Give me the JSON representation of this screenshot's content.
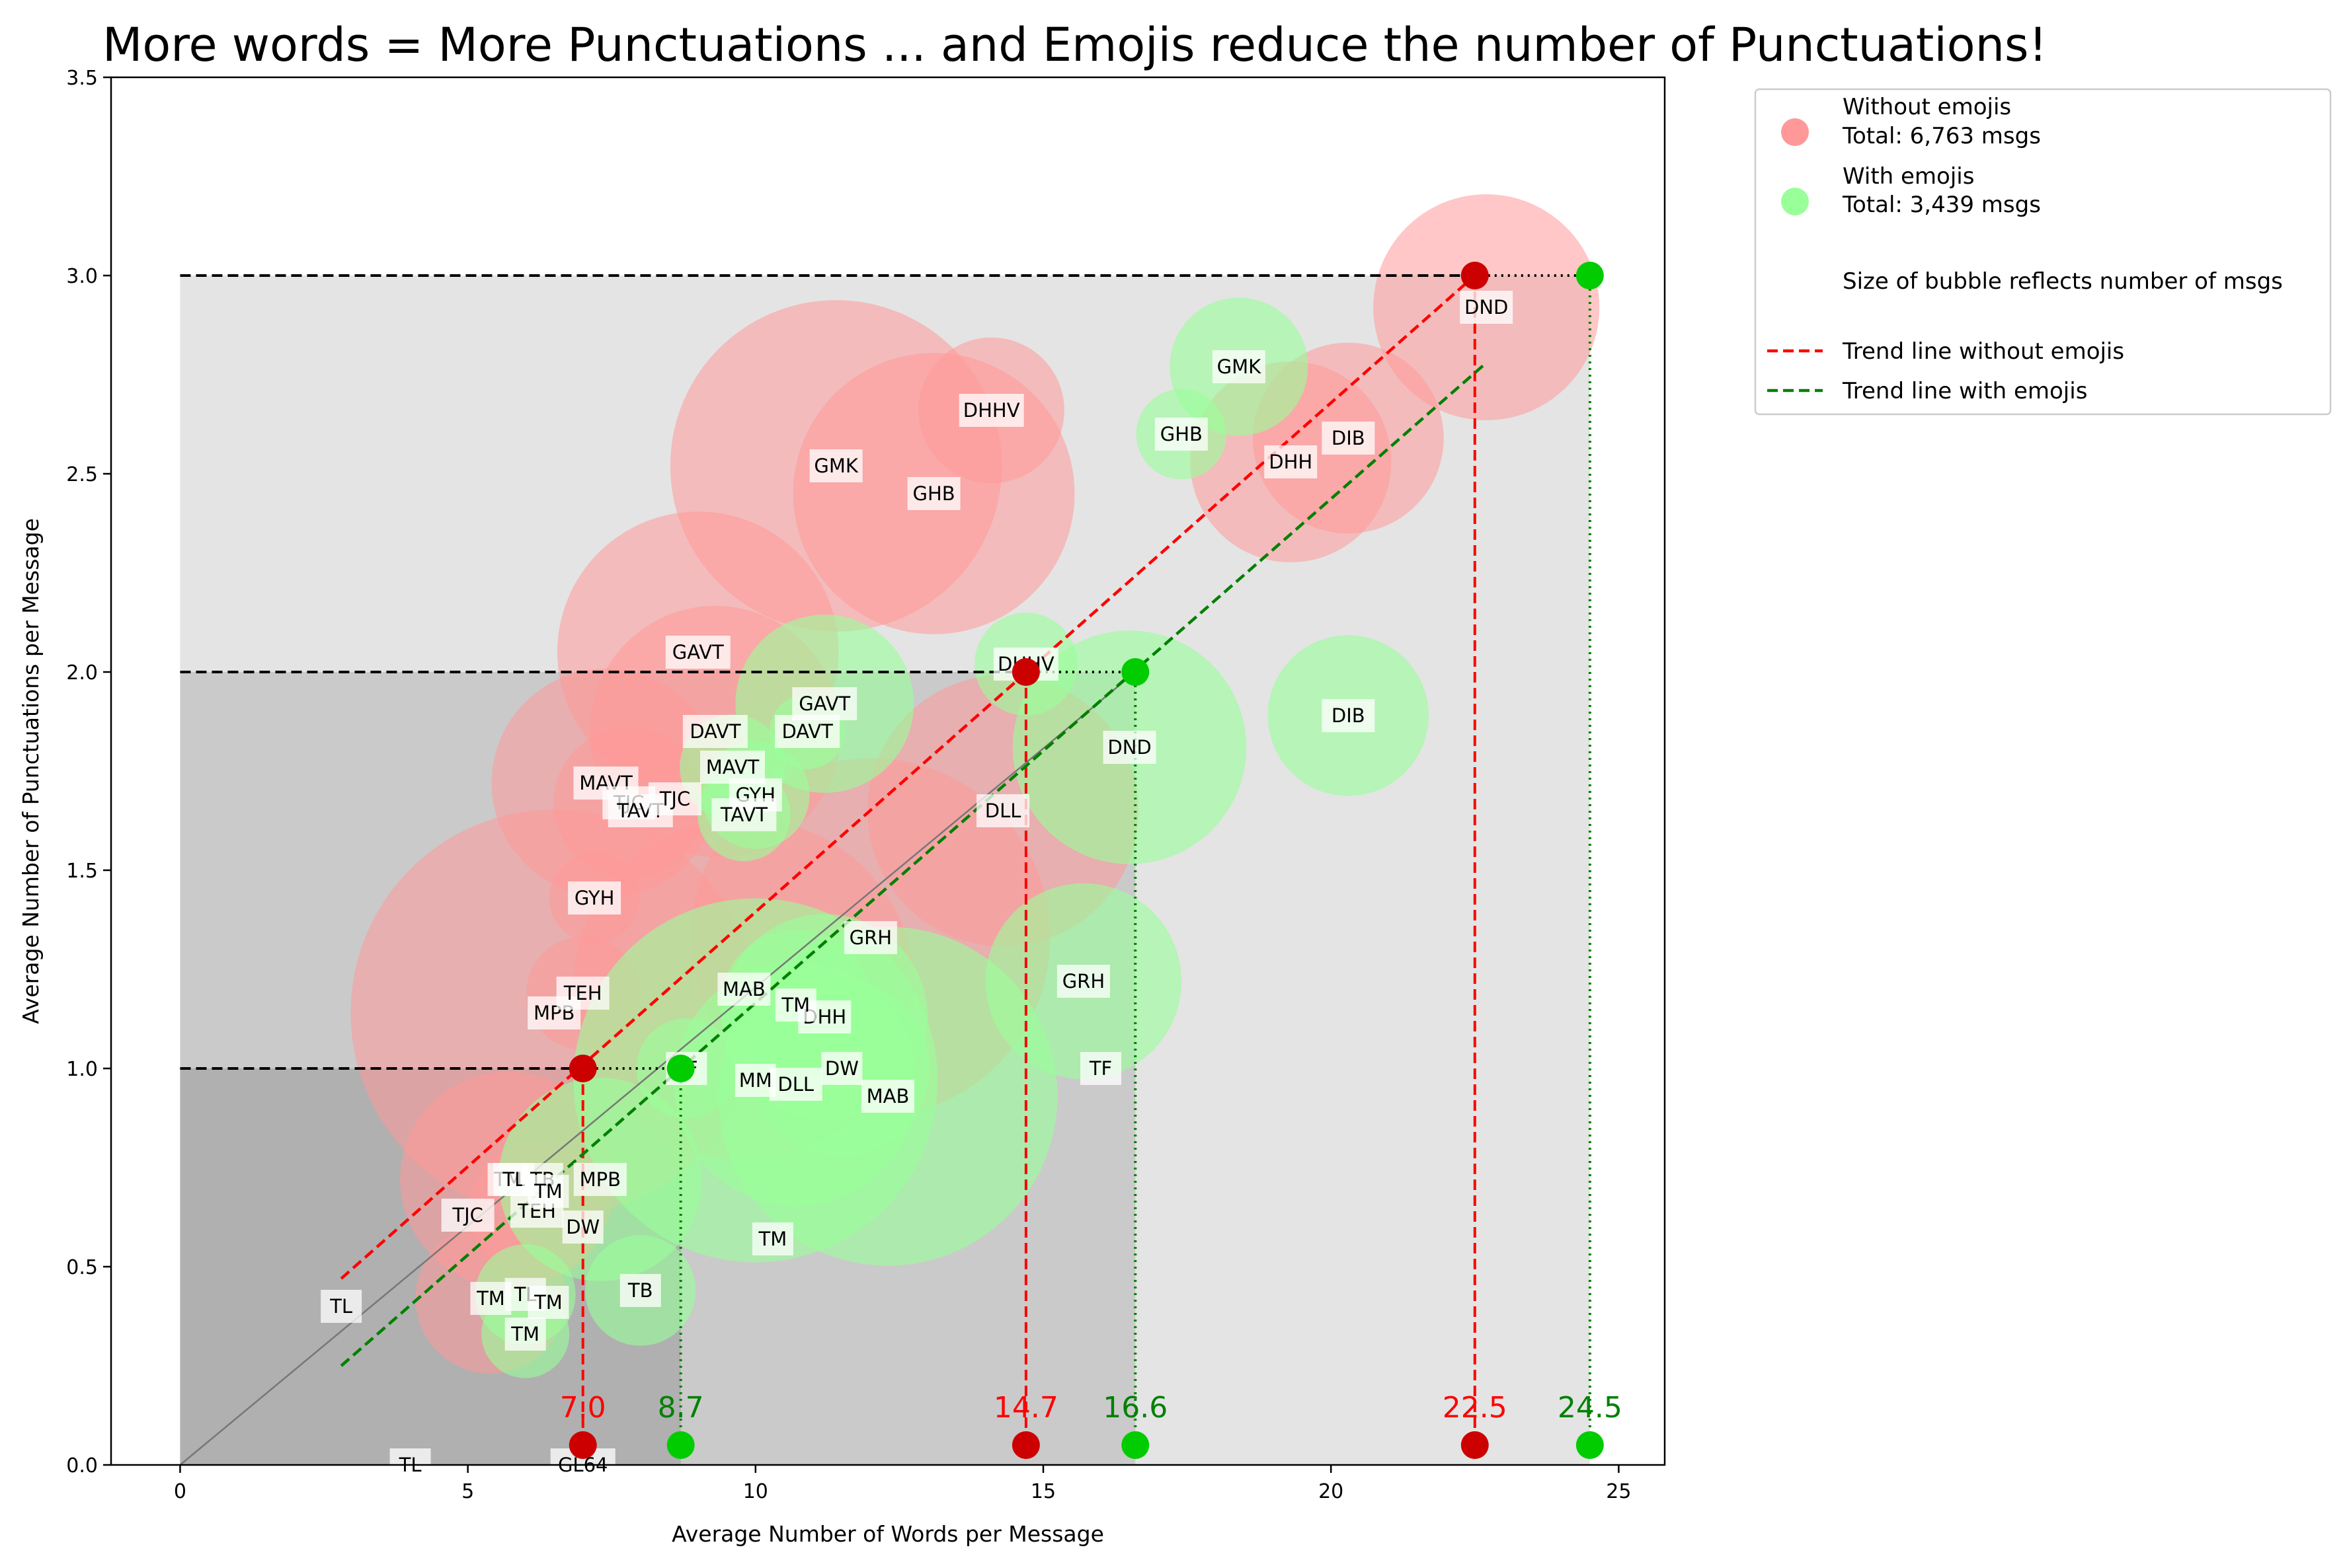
{
  "chart_data": {
    "type": "scatter",
    "title": "More words = More Punctuations ... and Emojis reduce the number of Punctuations!",
    "xlabel": "Average Number of Words per Message",
    "ylabel": "Average Number of Punctuations per Message",
    "xlim": [
      -1.2,
      25.8
    ],
    "ylim": [
      0,
      3.5
    ],
    "xticks": [
      0,
      5,
      10,
      15,
      20,
      25
    ],
    "yticks": [
      0.0,
      0.5,
      1.0,
      1.5,
      2.0,
      2.5,
      3.0,
      3.5
    ],
    "grid": false,
    "legend_placement": "outside-right-top",
    "colors": {
      "without": "#ff9999",
      "with": "#99ff99",
      "trend_without": "#ff0000",
      "trend_with": "#008000",
      "marker_without": "#cc0000",
      "marker_with": "#00cc00",
      "shade_dark": "#b0b0b0",
      "shade_mid": "#cacaca",
      "shade_light": "#e4e4e4"
    },
    "legend": [
      {
        "label": "Without emojis",
        "line2": "Total: 6,763 msgs",
        "kind": "without"
      },
      {
        "label": "With emojis",
        "line2": "Total: 3,439 msgs",
        "kind": "with"
      },
      {
        "label": "Size of bubble reflects number of msgs",
        "kind": "none"
      },
      {
        "label": "Trend line without emojis",
        "kind": "trend_without"
      },
      {
        "label": "Trend line with emojis",
        "kind": "trend_with"
      }
    ],
    "series": [
      {
        "name": "Without emojis",
        "points": [
          {
            "label": "DND",
            "x": 22.7,
            "y": 2.92,
            "size": 9
          },
          {
            "label": "DIB",
            "x": 20.3,
            "y": 2.59,
            "size": 7.6
          },
          {
            "label": "DHH",
            "x": 19.3,
            "y": 2.53,
            "size": 8
          },
          {
            "label": "DHHV",
            "x": 14.1,
            "y": 2.66,
            "size": 5.8
          },
          {
            "label": "GMK",
            "x": 11.4,
            "y": 2.52,
            "size": 13.2
          },
          {
            "label": "GHB",
            "x": 13.1,
            "y": 2.45,
            "size": 11.2
          },
          {
            "label": "GAVT",
            "x": 9.0,
            "y": 2.05,
            "size": 11.2
          },
          {
            "label": "DAVT",
            "x": 9.3,
            "y": 1.85,
            "size": 10
          },
          {
            "label": "MAVT",
            "x": 7.4,
            "y": 1.72,
            "size": 9.1
          },
          {
            "label": "TJC",
            "x": 7.8,
            "y": 1.67,
            "size": 6
          },
          {
            "label": "DLL",
            "x": 14.3,
            "y": 1.65,
            "size": 10.8
          },
          {
            "label": "GRH",
            "x": 12.0,
            "y": 1.33,
            "size": 14.3
          },
          {
            "label": "GYH",
            "x": 7.2,
            "y": 1.43,
            "size": 3.6
          },
          {
            "label": "MPB",
            "x": 6.5,
            "y": 1.14,
            "size": 16.2
          },
          {
            "label": "MAB",
            "x": 9.8,
            "y": 1.2,
            "size": 13.6
          },
          {
            "label": "TEH",
            "x": 7.0,
            "y": 1.19,
            "size": 4.5
          },
          {
            "label": "TM",
            "x": 5.7,
            "y": 0.72,
            "size": 8.6
          },
          {
            "label": "TM",
            "x": 5.4,
            "y": 0.42,
            "size": 6
          },
          {
            "label": "TEH",
            "x": 6.2,
            "y": 0.64,
            "size": 5.4
          }
        ]
      },
      {
        "name": "With emojis",
        "points": [
          {
            "label": "GMK",
            "x": 18.4,
            "y": 2.77,
            "size": 5.5
          },
          {
            "label": "GHB",
            "x": 17.4,
            "y": 2.6,
            "size": 3.6
          },
          {
            "label": "DIB",
            "x": 20.3,
            "y": 1.89,
            "size": 6.4
          },
          {
            "label": "DHHV",
            "x": 14.7,
            "y": 2.02,
            "size": 4.1
          },
          {
            "label": "DND",
            "x": 16.5,
            "y": 1.81,
            "size": 9.3
          },
          {
            "label": "GAVT",
            "x": 11.2,
            "y": 1.92,
            "size": 7.1
          },
          {
            "label": "DAVT",
            "x": 10.9,
            "y": 1.85,
            "size": 3
          },
          {
            "label": "MAVT",
            "x": 9.6,
            "y": 1.76,
            "size": 4.2
          },
          {
            "label": "GYH",
            "x": 10.0,
            "y": 1.69,
            "size": 4.3
          },
          {
            "label": "TAVT",
            "x": 9.8,
            "y": 1.64,
            "size": 3.7
          },
          {
            "label": "GRH",
            "x": 15.7,
            "y": 1.22,
            "size": 7.8
          },
          {
            "label": "DHH",
            "x": 11.2,
            "y": 1.13,
            "size": 8.2
          },
          {
            "label": "TM",
            "x": 10.7,
            "y": 1.16,
            "size": 6
          },
          {
            "label": "MAB",
            "x": 12.3,
            "y": 0.93,
            "size": 13.5
          },
          {
            "label": "DW",
            "x": 11.5,
            "y": 1.0,
            "size": 7
          },
          {
            "label": "DLL",
            "x": 10.7,
            "y": 0.96,
            "size": 9.7
          },
          {
            "label": "MM",
            "x": 10.0,
            "y": 0.97,
            "size": 14.5
          },
          {
            "label": "TF",
            "x": 8.8,
            "y": 1.0,
            "size": 4
          },
          {
            "label": "MPB",
            "x": 7.3,
            "y": 0.72,
            "size": 8.1
          },
          {
            "label": "TB",
            "x": 8.0,
            "y": 0.44,
            "size": 4.4
          },
          {
            "label": "TL",
            "x": 6.0,
            "y": 0.43,
            "size": 4
          },
          {
            "label": "TM",
            "x": 6.0,
            "y": 0.33,
            "size": 3.5
          }
        ]
      },
      {
        "name": "Unbubbled labels",
        "points": [
          {
            "label": "TAVT",
            "x": 8.0,
            "y": 1.65
          },
          {
            "label": "TJC",
            "x": 8.6,
            "y": 1.68
          },
          {
            "label": "TM",
            "x": 10.3,
            "y": 0.57
          },
          {
            "label": "TF",
            "x": 16.0,
            "y": 1.0
          },
          {
            "label": "TL",
            "x": 2.8,
            "y": 0.4
          },
          {
            "label": "TL",
            "x": 4.0,
            "y": 0.0
          },
          {
            "label": "GL64",
            "x": 7.0,
            "y": 0.0
          },
          {
            "label": "TJC",
            "x": 5.0,
            "y": 0.63
          },
          {
            "label": "TL",
            "x": 5.8,
            "y": 0.72
          },
          {
            "label": "TB",
            "x": 6.3,
            "y": 0.72
          },
          {
            "label": "TM",
            "x": 6.4,
            "y": 0.69
          },
          {
            "label": "DW",
            "x": 7.0,
            "y": 0.6
          },
          {
            "label": "TM",
            "x": 6.4,
            "y": 0.41
          }
        ]
      }
    ],
    "trend_lines": [
      {
        "name": "Trend line without emojis",
        "x": [
          2.8,
          22.5
        ],
        "y": [
          0.47,
          3.0
        ]
      },
      {
        "name": "Trend line with emojis",
        "x": [
          2.8,
          22.7
        ],
        "y": [
          0.25,
          2.78
        ]
      }
    ],
    "reference_levels": [
      {
        "y": 1.0,
        "x_without": 7.0,
        "x_with": 8.7,
        "label_without": "7.0",
        "label_with": "8.7"
      },
      {
        "y": 2.0,
        "x_without": 14.7,
        "x_with": 16.6,
        "label_without": "14.7",
        "label_with": "16.6"
      },
      {
        "y": 3.0,
        "x_without": 22.5,
        "x_with": 24.5,
        "label_without": "22.5",
        "label_with": "24.5"
      }
    ],
    "baseline_marker_y": 0.05
  }
}
